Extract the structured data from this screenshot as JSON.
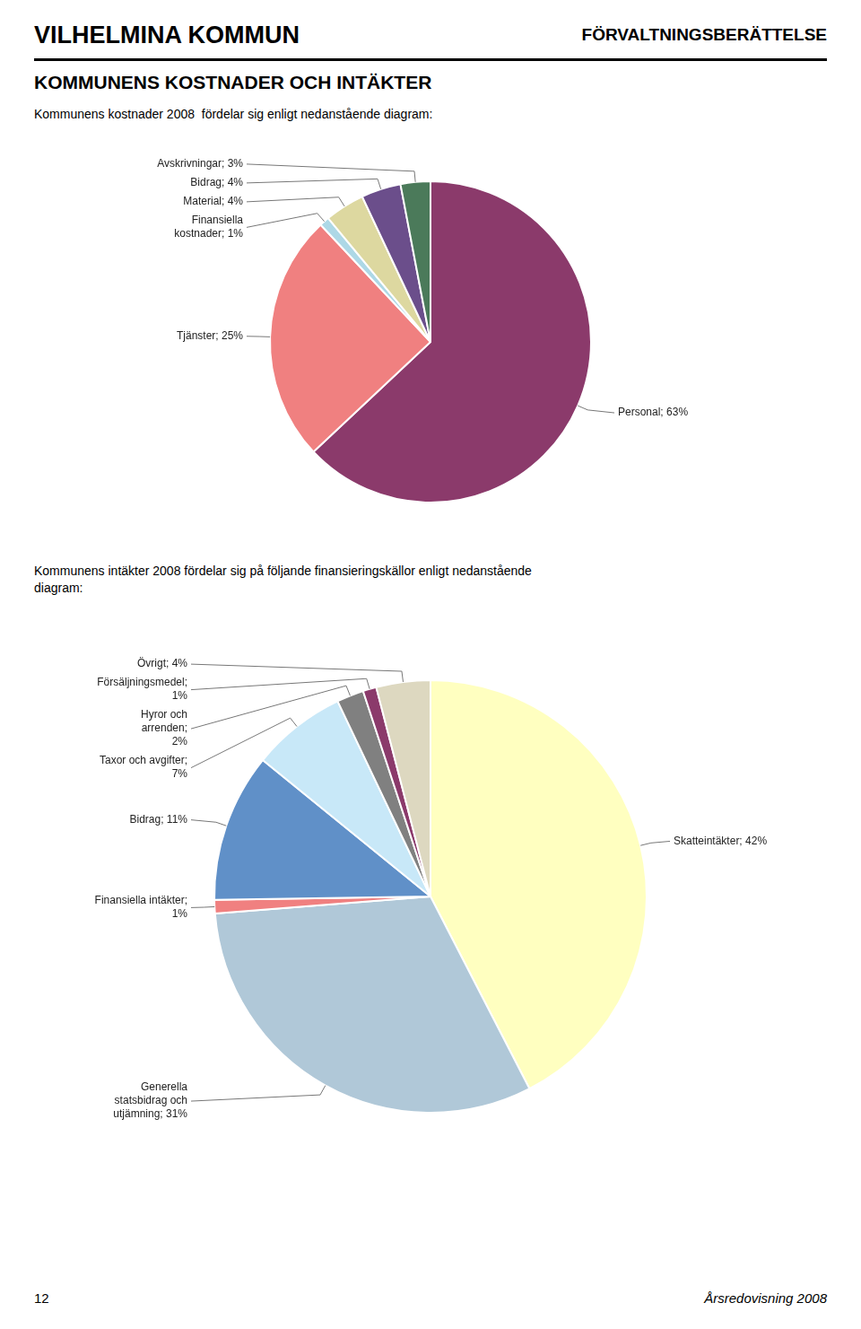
{
  "title": "VILHELMINA KOMMUN",
  "subtitle": "FÖRVALTNINGSBERÄTTELSE",
  "annotations": [
    "KOMMUNENS KOSTNADER OCH INTÄKTER",
    "12",
    "Årsredovisning 2008"
  ],
  "chart_data": [
    {
      "type": "pie",
      "title": "Kommunens kostnader 2008  fördelar sig enligt nedanstående diagram:",
      "categories": [
        "Personal; 63%",
        "Tjänster; 25%",
        "Finansiella\nkostnader; 1%",
        "Material; 4%",
        "Bidrag; 4%",
        "Avskrivningar; 3%"
      ],
      "values": [
        63,
        25,
        1,
        4,
        4,
        3
      ],
      "colors": [
        "#8B3A6B",
        "#F08080",
        "#ADD8E6",
        "#DDD8A0",
        "#6B4E8B",
        "#4B7A5A"
      ]
    },
    {
      "type": "pie",
      "title": "Kommunens intäkter 2008 fördelar sig på följande finansieringskällor enligt nedanstående\ndiagram:",
      "categories": [
        "Skatteintäkter; 42%",
        "Generella\nstatsbidrag och\nutjämning; 31%",
        "Finansiella intäkter;\n1%",
        "Bidrag; 11%",
        "Taxor och avgifter;\n7%",
        "Hyror och\narrenden;\n2%",
        "Försäljningsmedel;\n1%",
        "Övrigt; 4%"
      ],
      "values": [
        42,
        31,
        1,
        11,
        7,
        2,
        1,
        4
      ],
      "colors": [
        "#FFFFC0",
        "#B0C8D8",
        "#F08080",
        "#6090C8",
        "#C8E8F8",
        "#808080",
        "#8B3A6B",
        "#DDD8C0"
      ]
    }
  ]
}
